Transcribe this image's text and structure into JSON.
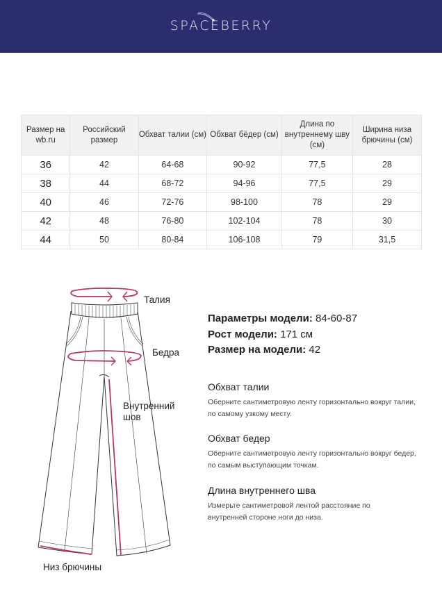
{
  "brand": {
    "logo": "SPACEBERRY",
    "background": "#2c2d6e"
  },
  "size_table": {
    "headers": [
      "Размер на wb.ru",
      "Российский размер",
      "Обхват талии (см)",
      "Обхват бёдер (см)",
      "Длина по внутреннему шву (см)",
      "Ширина низа брючины (см)"
    ],
    "rows": [
      [
        "36",
        "42",
        "64-68",
        "90-92",
        "77,5",
        "28"
      ],
      [
        "38",
        "44",
        "68-72",
        "94-96",
        "77,5",
        "29"
      ],
      [
        "40",
        "46",
        "72-76",
        "98-100",
        "78",
        "29"
      ],
      [
        "42",
        "48",
        "76-80",
        "102-104",
        "78",
        "30"
      ],
      [
        "44",
        "50",
        "80-84",
        "106-108",
        "79",
        "31,5"
      ]
    ]
  },
  "diagram": {
    "labels": {
      "waist": "Талия",
      "hips": "Бедра",
      "inseam": "Внутренний шов",
      "hem": "Низ брючины"
    },
    "accent": "#b5365f"
  },
  "model": [
    {
      "label": "Параметры модели:",
      "value": "84-60-87"
    },
    {
      "label": "Рост модели:",
      "value": "171 см"
    },
    {
      "label": "Размер на модели:",
      "value": "42"
    }
  ],
  "instructions": [
    {
      "title": "Обхват талии",
      "text": "Оберните сантиметровую ленту горизонтально вокруг талии, по самому узкому месту."
    },
    {
      "title": "Обхват бедер",
      "text": "Оберните сантиметровую ленту горизонтально вокруг бедер, по самым выступающим точкам."
    },
    {
      "title": "Длина внутреннего шва",
      "text": "Измерьте сантиметровой лентой расстояние по внутренней стороне ноги до низа."
    }
  ]
}
